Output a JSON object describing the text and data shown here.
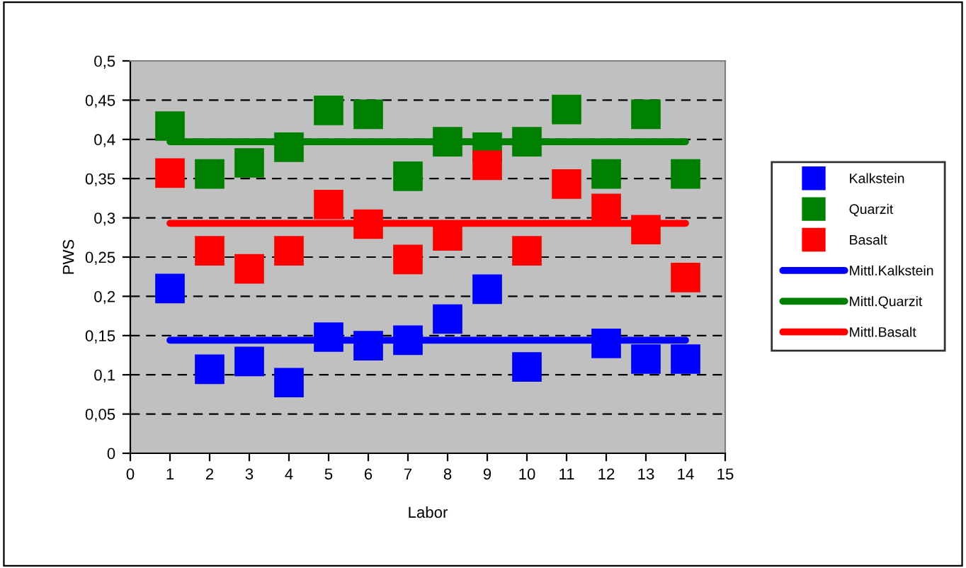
{
  "chart_data": {
    "type": "scatter",
    "xlabel": "Labor",
    "ylabel": "PWS",
    "xlim": [
      0,
      15
    ],
    "xticks": [
      0,
      1,
      2,
      3,
      4,
      5,
      6,
      7,
      8,
      9,
      10,
      11,
      12,
      13,
      14,
      15
    ],
    "ylim": [
      0,
      0.5
    ],
    "yticks": [
      {
        "value": 0,
        "label": "0"
      },
      {
        "value": 0.05,
        "label": "0,05"
      },
      {
        "value": 0.1,
        "label": "0,1"
      },
      {
        "value": 0.15,
        "label": "0,15"
      },
      {
        "value": 0.2,
        "label": "0,2"
      },
      {
        "value": 0.25,
        "label": "0,25"
      },
      {
        "value": 0.3,
        "label": "0,3"
      },
      {
        "value": 0.35,
        "label": "0,35"
      },
      {
        "value": 0.4,
        "label": "0,4"
      },
      {
        "value": 0.45,
        "label": "0,45"
      },
      {
        "value": 0.5,
        "label": "0,5"
      }
    ],
    "grid": "y",
    "legend": "right",
    "marker": "square",
    "x": [
      1,
      2,
      3,
      4,
      5,
      6,
      7,
      8,
      9,
      10,
      11,
      12,
      13,
      14
    ],
    "series": [
      {
        "name": "Kalkstein",
        "color": "#0000ff",
        "values": [
          0.21,
          0.107,
          0.117,
          0.09,
          0.148,
          0.137,
          0.144,
          0.171,
          0.209,
          0.11,
          null,
          0.14,
          0.12,
          0.12
        ]
      },
      {
        "name": "Quarzit",
        "color": "#008000",
        "values": [
          0.417,
          0.356,
          0.37,
          0.39,
          0.437,
          0.432,
          0.353,
          0.397,
          0.39,
          0.397,
          0.438,
          0.356,
          0.432,
          0.356
        ]
      },
      {
        "name": "Basalt",
        "color": "#ff0000",
        "values": [
          0.357,
          0.258,
          0.235,
          0.258,
          0.317,
          0.292,
          0.247,
          0.277,
          0.367,
          0.258,
          0.343,
          0.312,
          0.285,
          0.224
        ]
      },
      {
        "name": "Mittl.Kalkstein",
        "type": "line",
        "marker": "none",
        "color": "#0000ff",
        "values": [
          0.144,
          0.144,
          0.144,
          0.144,
          0.144,
          0.144,
          0.144,
          0.144,
          0.144,
          0.144,
          0.144,
          0.144,
          0.144,
          0.144
        ]
      },
      {
        "name": "Mittl.Quarzit",
        "type": "line",
        "marker": "none",
        "color": "#008000",
        "values": [
          0.397,
          0.397,
          0.397,
          0.397,
          0.397,
          0.397,
          0.397,
          0.397,
          0.397,
          0.397,
          0.397,
          0.397,
          0.397,
          0.397
        ]
      },
      {
        "name": "Mittl.Basalt",
        "type": "line",
        "marker": "none",
        "color": "#ff0000",
        "values": [
          0.293,
          0.293,
          0.293,
          0.293,
          0.293,
          0.293,
          0.293,
          0.293,
          0.293,
          0.293,
          0.293,
          0.293,
          0.293,
          0.293
        ]
      }
    ]
  }
}
